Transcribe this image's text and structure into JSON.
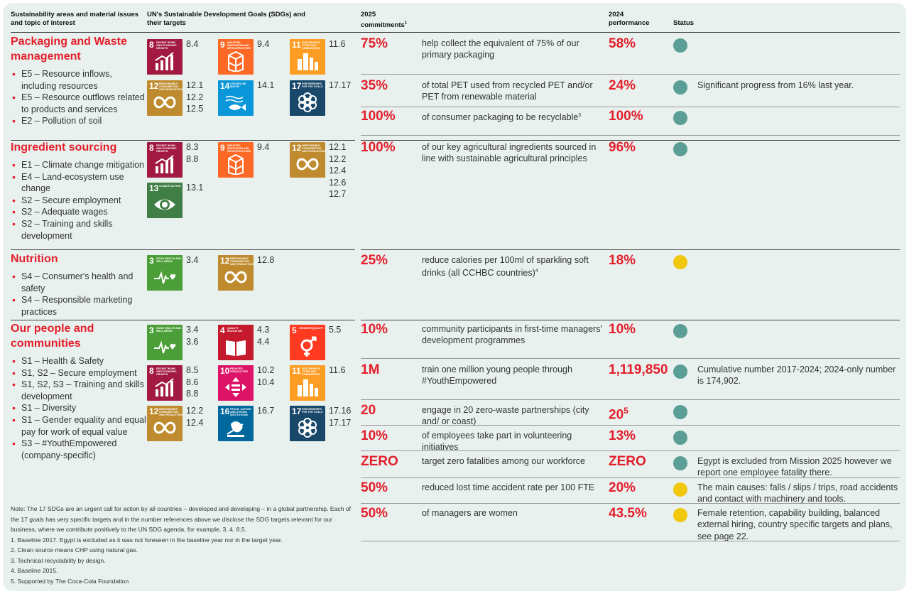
{
  "headers": {
    "areas": "Sustainability areas and material issues and topic of interest",
    "sdgs": "UN's Sustainable Development Goals (SDGs) and their targets",
    "commit": "2025 commitments",
    "commit_sup": "1",
    "perf": "2024 performance",
    "status": "Status"
  },
  "colors": {
    "accent": "#e41e2b",
    "on_track": "#5a9e95",
    "in_progress": "#f2c80f",
    "background": "#e8f1ee"
  },
  "areas": [
    {
      "title": "Packaging and Waste management",
      "topics": [
        "E5 – Resource inflows, including resources",
        "E5 – Resource outflows related to products and services",
        "E2 – Pollution of soil"
      ]
    },
    {
      "title": "Ingredient sourcing",
      "topics": [
        "E1 – Climate change mitigation",
        "E4 – Land-ecosystem use change",
        "S2 – Secure employment",
        "S2 – Adequate wages",
        "S2 – Training and skills development"
      ]
    },
    {
      "title": "Nutrition",
      "topics": [
        "S4 – Consumer's health and safety",
        "S4 – Responsible marketing practices"
      ]
    },
    {
      "title": "Our people and communities",
      "topics": [
        "S1 – Health & Safety",
        "S1, S2 – Secure employment",
        "S1, S2, S3 – Training and skills development",
        "S1 – Diversity",
        "S1 – Gender equality and equal pay for work of equal value",
        "S3 – #YouthEmpowered (company-specific)"
      ]
    }
  ],
  "sdgs": [
    {
      "number": "8",
      "label": "Decent work and economic growth",
      "icon": "growth-chart-icon",
      "color": "#a21942",
      "targets": "8.4"
    },
    {
      "number": "9",
      "label": "Industry, innovation and infrastructure",
      "icon": "cubes-icon",
      "color": "#fd6925",
      "targets": "9.4"
    },
    {
      "number": "11",
      "label": "Sustainable cities and communities",
      "icon": "city-icon",
      "color": "#fd9d24",
      "targets": "11.6"
    },
    {
      "number": "12",
      "label": "Responsible consumption and production",
      "icon": "infinity-icon",
      "color": "#bf8b2e",
      "targets": "12.1\n12.2\n12.5"
    },
    {
      "number": "14",
      "label": "Life below water",
      "icon": "fish-icon",
      "color": "#0a97d9",
      "targets": "14.1"
    },
    {
      "number": "17",
      "label": "Partnerships for the goals",
      "icon": "flower-icon",
      "color": "#19486a",
      "targets": "17.17"
    },
    {
      "number": "8",
      "label": "Decent work and economic growth",
      "icon": "growth-chart-icon",
      "color": "#a21942",
      "targets": "8.3\n8.8"
    },
    {
      "number": "9",
      "label": "Industry, innovation and infrastructure",
      "icon": "cubes-icon",
      "color": "#fd6925",
      "targets": "9.4"
    },
    {
      "number": "12",
      "label": "Responsible consumption and production",
      "icon": "infinity-icon",
      "color": "#bf8b2e",
      "targets": "12.1\n12.2\n12.4\n12.6\n12.7"
    },
    {
      "number": "13",
      "label": "Climate action",
      "icon": "eye-globe-icon",
      "color": "#3f7e44",
      "targets": "13.1"
    },
    {
      "number": "3",
      "label": "Good health and well-being",
      "icon": "heartbeat-icon",
      "color": "#4c9f38",
      "targets": "3.4"
    },
    {
      "number": "12",
      "label": "Responsible consumption and production",
      "icon": "infinity-icon",
      "color": "#bf8b2e",
      "targets": "12.8"
    },
    {
      "number": "3",
      "label": "Good health and well-being",
      "icon": "heartbeat-icon",
      "color": "#4c9f38",
      "targets": "3.4\n3.6"
    },
    {
      "number": "4",
      "label": "Quality education",
      "icon": "book-icon",
      "color": "#c5192d",
      "targets": "4.3\n4.4"
    },
    {
      "number": "5",
      "label": "Gender equality",
      "icon": "gender-icon",
      "color": "#ff3a21",
      "targets": "5.5"
    },
    {
      "number": "8",
      "label": "Decent work and economic growth",
      "icon": "growth-chart-icon",
      "color": "#a21942",
      "targets": "8.5\n8.6\n8.8"
    },
    {
      "number": "10",
      "label": "Reduced inequalities",
      "icon": "equality-icon",
      "color": "#dd1367",
      "targets": "10.2\n10.4"
    },
    {
      "number": "11",
      "label": "Sustainable cities and communities",
      "icon": "city-icon",
      "color": "#fd9d24",
      "targets": "11.6"
    },
    {
      "number": "12",
      "label": "Responsible consumption and production",
      "icon": "infinity-icon",
      "color": "#bf8b2e",
      "targets": "12.2\n12.4"
    },
    {
      "number": "16",
      "label": "Peace, justice and strong institutions",
      "icon": "dove-icon",
      "color": "#00689d",
      "targets": "16.7"
    },
    {
      "number": "17",
      "label": "Partnerships for the goals",
      "icon": "flower-icon",
      "color": "#19486a",
      "targets": "17.16\n17.17"
    }
  ],
  "rows": [
    {
      "commitment": "75%",
      "description": "help collect the equivalent of 75% of our primary packaging",
      "description_sup": "",
      "performance": "58%",
      "performance_sup": "",
      "status": "on_track",
      "note": ""
    },
    {
      "commitment": "35%",
      "description": "of total PET used from recycled PET and/or PET from renewable material",
      "description_sup": "",
      "performance": "24%",
      "performance_sup": "",
      "status": "on_track",
      "note": "Significant progress from 16% last year."
    },
    {
      "commitment": "100%",
      "description": "of consumer packaging to be recyclable",
      "description_sup": "3",
      "performance": "100%",
      "performance_sup": "",
      "status": "on_track",
      "note": ""
    },
    {
      "commitment": "100%",
      "description": "of our key agricultural ingredients sourced in line with sustainable agricultural principles",
      "description_sup": "",
      "performance": "96%",
      "performance_sup": "",
      "status": "on_track",
      "note": ""
    },
    {
      "commitment": "25%",
      "description": "reduce calories per 100ml of sparkling soft drinks (all CCHBC countries)",
      "description_sup": "4",
      "performance": "18%",
      "performance_sup": "",
      "status": "in_progress",
      "note": ""
    },
    {
      "commitment": "10%",
      "description": "community participants in first-time managers' development programmes",
      "description_sup": "",
      "performance": "10%",
      "performance_sup": "",
      "status": "on_track",
      "note": ""
    },
    {
      "commitment": "1M",
      "description": "train one million young people through #YouthEmpowered",
      "description_sup": "",
      "performance": "1,119,850",
      "performance_sup": "",
      "status": "on_track",
      "note": "Cumulative number 2017-2024; 2024-only number is 174,902."
    },
    {
      "commitment": "20",
      "description": "engage in 20 zero-waste partnerships (city and/ or coast)",
      "description_sup": "",
      "performance": "20",
      "performance_sup": "5",
      "status": "on_track",
      "note": ""
    },
    {
      "commitment": "10%",
      "description": "of employees take part in volunteering initiatives",
      "description_sup": "",
      "performance": "13%",
      "performance_sup": "",
      "status": "on_track",
      "note": ""
    },
    {
      "commitment": "ZERO",
      "description": "target zero fatalities among our workforce",
      "description_sup": "",
      "performance": "ZERO",
      "performance_sup": "",
      "status": "on_track",
      "note": "Egypt is excluded from Mission 2025 however we report one employee fatality there."
    },
    {
      "commitment": "50%",
      "description": "reduced lost time accident rate per 100 FTE",
      "description_sup": "",
      "performance": "20%",
      "performance_sup": "",
      "status": "in_progress",
      "note": "The main causes: falls / slips / trips, road accidents and contact with machinery and tools."
    },
    {
      "commitment": "50%",
      "description": "of managers are women",
      "description_sup": "",
      "performance": "43.5%",
      "performance_sup": "",
      "status": "in_progress",
      "note": "Female retention, capability building, balanced external hiring, country specific targets and plans, see page 22."
    }
  ],
  "footnotes": [
    "Note: The 17 SDGs are an urgent call for action by all countries – developed and developing – in a global partnership. Each of the 17 goals has very specific targets and in the number references above we disclose the SDG targets relevant for our business, where we contribute positively to the UN SDG agenda, for example, 3. 4, 8.5.",
    "1.   Baseline 2017. Egypt is excluded as it was not foreseen in the baseline year nor in the target year.",
    "2.   Clean source means CHP using natural gas.",
    "3.   Technical recyclability by design.",
    "4.   Baseline 2015.",
    "5.   Supported by The Coca-Cola Foundation"
  ]
}
